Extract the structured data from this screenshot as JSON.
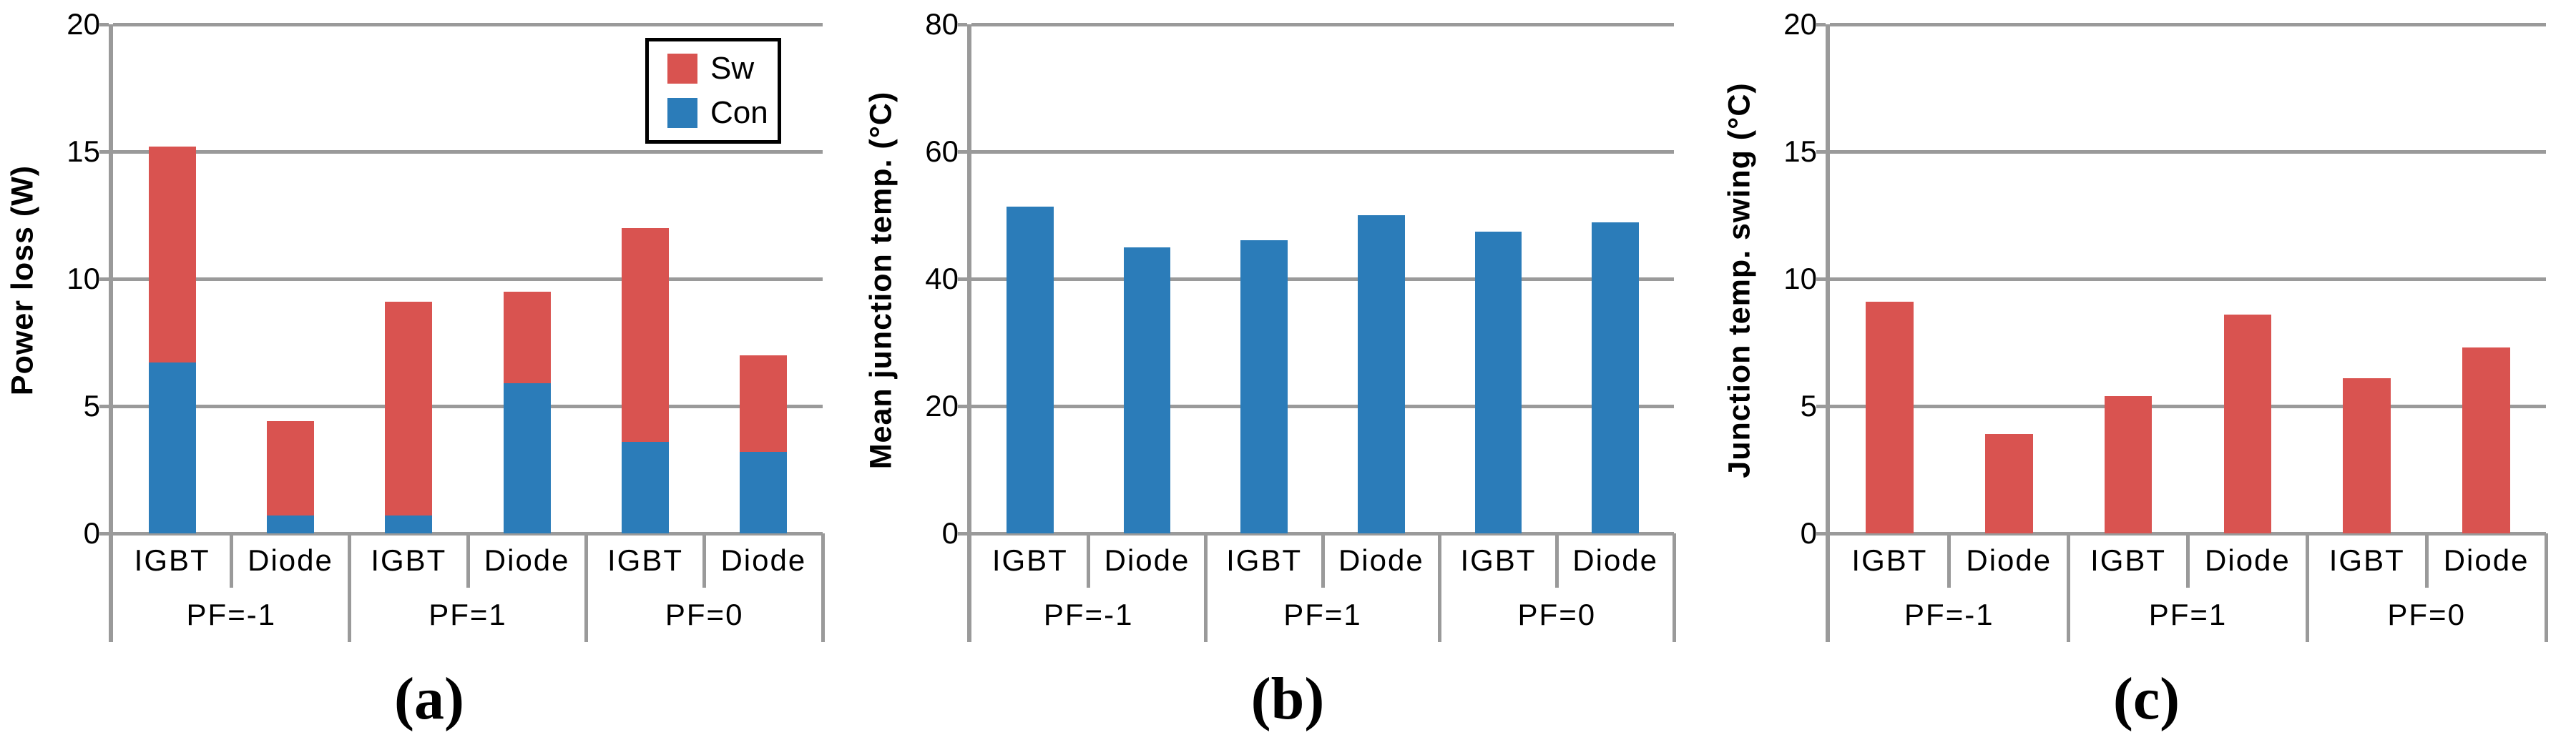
{
  "figure": {
    "background": "#ffffff",
    "grid_color": "#9a9a9a",
    "text_color": "#000000",
    "sw_color": "#d95350",
    "con_color": "#2b7cb9"
  },
  "legend": {
    "items": [
      {
        "label": "Sw",
        "color": "#d95350"
      },
      {
        "label": "Con",
        "color": "#2b7cb9"
      }
    ]
  },
  "captions": [
    "(a)",
    "(b)",
    "(c)"
  ],
  "chart_data": [
    {
      "type": "bar",
      "stacked": true,
      "show_legend": true,
      "ylabel": "Power loss (W)",
      "ylim": [
        0,
        20
      ],
      "yticks": [
        0,
        5,
        10,
        15,
        20
      ],
      "grid": true,
      "legend_position": "top-right",
      "groups": [
        "PF=-1",
        "PF=1",
        "PF=0"
      ],
      "categories": [
        "IGBT",
        "Diode",
        "IGBT",
        "Diode",
        "IGBT",
        "Diode"
      ],
      "series": [
        {
          "name": "Con",
          "color": "#2b7cb9",
          "values": [
            6.7,
            0.7,
            0.7,
            5.9,
            3.6,
            3.2
          ]
        },
        {
          "name": "Sw",
          "color": "#d95350",
          "values": [
            8.5,
            3.7,
            8.4,
            3.6,
            8.4,
            3.8
          ]
        }
      ],
      "bar_totals": [
        15.2,
        4.4,
        9.1,
        9.5,
        12.0,
        7.0
      ]
    },
    {
      "type": "bar",
      "stacked": false,
      "show_legend": false,
      "ylabel": "Mean junction temp. (°C)",
      "ylim": [
        0,
        80
      ],
      "yticks": [
        0,
        20,
        40,
        60,
        80
      ],
      "grid": true,
      "groups": [
        "PF=-1",
        "PF=1",
        "PF=0"
      ],
      "categories": [
        "IGBT",
        "Diode",
        "IGBT",
        "Diode",
        "IGBT",
        "Diode"
      ],
      "series": [
        {
          "name": "Mean junction temp.",
          "color": "#2b7cb9",
          "values": [
            51.3,
            45.0,
            46.1,
            50.0,
            47.4,
            48.9
          ]
        }
      ]
    },
    {
      "type": "bar",
      "stacked": false,
      "show_legend": false,
      "ylabel": "Junction temp. swing (°C)",
      "ylim": [
        0,
        20
      ],
      "yticks": [
        0,
        5,
        10,
        15,
        20
      ],
      "grid": true,
      "groups": [
        "PF=-1",
        "PF=1",
        "PF=0"
      ],
      "categories": [
        "IGBT",
        "Diode",
        "IGBT",
        "Diode",
        "IGBT",
        "Diode"
      ],
      "series": [
        {
          "name": "Junction temp. swing",
          "color": "#d95350",
          "values": [
            9.1,
            3.9,
            5.4,
            8.6,
            6.1,
            7.3
          ]
        }
      ]
    }
  ]
}
